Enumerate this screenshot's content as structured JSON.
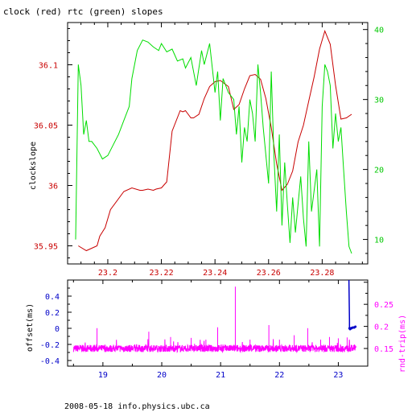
{
  "title": "clock (red) rtc (green) slopes",
  "footer": "2008-05-18 info.physics.ubc.ca",
  "colors": {
    "clock": "#c80000",
    "rtc": "#00dd00",
    "offset": "#0000c8",
    "rndtrip": "#ff00ff",
    "frame": "#000000",
    "left_axis": "#c80000",
    "right_axis": "#00c800"
  },
  "chart_data": [
    {
      "type": "line",
      "title": "clock (red) rtc (green) slopes",
      "ylabel": "clockslope",
      "xlim": [
        23.185,
        23.297
      ],
      "ylim": [
        35.935,
        36.135
      ],
      "y2lim": [
        6.5,
        41
      ],
      "x_ticks": [
        "23.2",
        "23.22",
        "23.24",
        "23.26",
        "23.28"
      ],
      "y_ticks": [
        "35.95",
        "36",
        "36.05",
        "36.1"
      ],
      "y2_ticks": [
        "10",
        "20",
        "30",
        "40"
      ],
      "grid": false,
      "series": [
        {
          "name": "clock",
          "axis": "left",
          "x": [
            23.189,
            23.192,
            23.196,
            23.197,
            23.199,
            23.201,
            23.206,
            23.209,
            23.212,
            23.213,
            23.215,
            23.217,
            23.218,
            23.22,
            23.222,
            23.224,
            23.227,
            23.228,
            23.229,
            23.231,
            23.232,
            23.234,
            23.236,
            23.238,
            23.24,
            23.242,
            23.245,
            23.247,
            23.249,
            23.251,
            23.253,
            23.255,
            23.257,
            23.259,
            23.261,
            23.263,
            23.265,
            23.267,
            23.269,
            23.271,
            23.273,
            23.275,
            23.277,
            23.279,
            23.281,
            23.283,
            23.285,
            23.287,
            23.289,
            23.291
          ],
          "values": [
            35.95,
            35.946,
            35.95,
            35.958,
            35.965,
            35.98,
            35.995,
            35.998,
            35.996,
            35.996,
            35.997,
            35.996,
            35.997,
            35.998,
            36.003,
            36.045,
            36.062,
            36.061,
            36.062,
            36.056,
            36.056,
            36.059,
            36.072,
            36.082,
            36.086,
            36.087,
            36.082,
            36.063,
            36.067,
            36.08,
            36.091,
            36.092,
            36.088,
            36.072,
            36.048,
            36.018,
            35.996,
            36.001,
            36.012,
            36.036,
            36.05,
            36.07,
            36.09,
            36.113,
            36.128,
            36.117,
            36.083,
            36.055,
            36.056,
            36.059
          ]
        },
        {
          "name": "rtc",
          "axis": "right",
          "x": [
            23.188,
            23.189,
            23.19,
            23.191,
            23.192,
            23.193,
            23.194,
            23.196,
            23.198,
            23.2,
            23.202,
            23.204,
            23.206,
            23.208,
            23.209,
            23.211,
            23.213,
            23.215,
            23.217,
            23.219,
            23.22,
            23.222,
            23.224,
            23.226,
            23.228,
            23.229,
            23.231,
            23.233,
            23.235,
            23.236,
            23.238,
            23.24,
            23.241,
            23.242,
            23.243,
            23.245,
            23.247,
            23.248,
            23.249,
            23.25,
            23.251,
            23.252,
            23.253,
            23.254,
            23.255,
            23.256,
            23.257,
            23.258,
            23.26,
            23.261,
            23.262,
            23.263,
            23.264,
            23.265,
            23.266,
            23.267,
            23.268,
            23.269,
            23.27,
            23.272,
            23.273,
            23.274,
            23.275,
            23.276,
            23.278,
            23.279,
            23.28,
            23.281,
            23.282,
            23.283,
            23.284,
            23.285,
            23.286,
            23.287,
            23.288,
            23.289,
            23.29,
            23.291
          ],
          "values": [
            10,
            35,
            32,
            25,
            27,
            24,
            24,
            23,
            21.5,
            22,
            23.5,
            25,
            27,
            29,
            33,
            37,
            38.5,
            38.2,
            37.5,
            37,
            38,
            36.8,
            37.2,
            35.5,
            35.8,
            34.5,
            36,
            32,
            37,
            35,
            38,
            31,
            34,
            27,
            33,
            31,
            30,
            25,
            29,
            21,
            26,
            24,
            30,
            28,
            24,
            35,
            31,
            26,
            18,
            34,
            22,
            14,
            25,
            12,
            21,
            15,
            9.5,
            16,
            11,
            19,
            13,
            9,
            24,
            14,
            20,
            9,
            29,
            35,
            34,
            32,
            23,
            28,
            24,
            26,
            20,
            14,
            9,
            8
          ]
        }
      ]
    },
    {
      "type": "line",
      "ylabel": "offset(ms)",
      "y2label": "rnd-trip(ms)",
      "xlim": [
        18.4,
        23.5
      ],
      "ylim": [
        -0.47,
        0.6
      ],
      "y2lim": [
        0.11,
        0.305
      ],
      "x_ticks": [
        "19",
        "20",
        "21",
        "22",
        "23"
      ],
      "y_ticks": [
        "-0.4",
        "-0.2",
        "0",
        "0.2",
        "0.4"
      ],
      "y2_ticks": [
        "0.15",
        "0.2",
        "0.25"
      ],
      "grid": false,
      "series": [
        {
          "name": "offset",
          "axis": "left",
          "x": [
            23.18,
            23.19,
            23.19,
            23.2,
            23.21,
            23.22,
            23.23,
            23.25,
            23.27,
            23.29
          ],
          "values": [
            0.6,
            0.1,
            0.0,
            -0.01,
            0.0,
            0.0,
            0.005,
            0.01,
            0.01,
            0.02
          ]
        },
        {
          "name": "rnd-trip",
          "axis": "right",
          "base": 0.15,
          "noise": 0.008,
          "x_start": 18.5,
          "x_end": 23.3,
          "spikes": [
            [
              18.9,
              0.196
            ],
            [
              19.78,
              0.188
            ],
            [
              20.15,
              0.176
            ],
            [
              20.5,
              0.174
            ],
            [
              20.75,
              0.17
            ],
            [
              20.95,
              0.198
            ],
            [
              21.25,
              0.29
            ],
            [
              21.5,
              0.17
            ],
            [
              21.82,
              0.203
            ],
            [
              22.0,
              0.17
            ],
            [
              22.25,
              0.18
            ],
            [
              22.48,
              0.196
            ],
            [
              22.7,
              0.17
            ],
            [
              22.85,
              0.176
            ],
            [
              23.0,
              0.173
            ],
            [
              23.15,
              0.175
            ]
          ]
        }
      ]
    }
  ]
}
